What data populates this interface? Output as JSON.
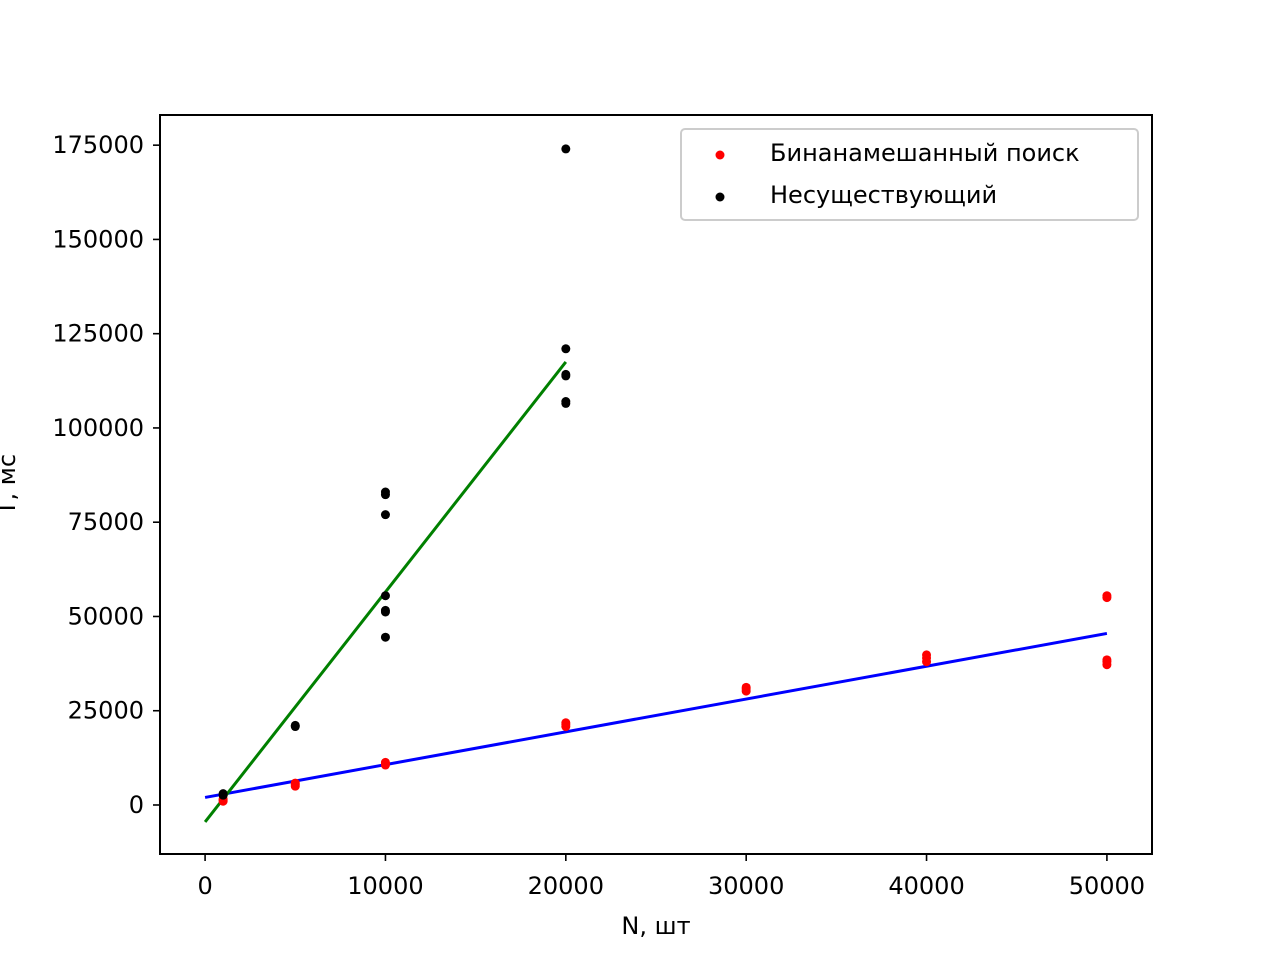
{
  "chart_data": {
    "type": "scatter",
    "title": "",
    "xlabel": "N, шт",
    "ylabel": "T, мс",
    "xlim": [
      -2500,
      52500
    ],
    "ylim": [
      -13000,
      183000
    ],
    "xticks": [
      0,
      10000,
      20000,
      30000,
      40000,
      50000
    ],
    "xtick_labels": [
      "0",
      "10000",
      "20000",
      "30000",
      "40000",
      "50000"
    ],
    "yticks": [
      0,
      25000,
      50000,
      75000,
      100000,
      125000,
      150000,
      175000
    ],
    "ytick_labels": [
      "0",
      "25000",
      "50000",
      "75000",
      "100000",
      "125000",
      "150000",
      "175000"
    ],
    "grid": false,
    "legend_position": "top-right",
    "series": [
      {
        "name": "Бинанамешанный поиск",
        "color": "#ff0000",
        "points": [
          [
            1000,
            1000
          ],
          [
            1000,
            1300
          ],
          [
            1000,
            1600
          ],
          [
            5000,
            5000
          ],
          [
            5000,
            5400
          ],
          [
            5000,
            5800
          ],
          [
            10000,
            10600
          ],
          [
            10000,
            11000
          ],
          [
            10000,
            11300
          ],
          [
            20000,
            20800
          ],
          [
            20000,
            21400
          ],
          [
            20000,
            21800
          ],
          [
            30000,
            30200
          ],
          [
            30000,
            30800
          ],
          [
            30000,
            31200
          ],
          [
            40000,
            38000
          ],
          [
            40000,
            39000
          ],
          [
            40000,
            39800
          ],
          [
            50000,
            37200
          ],
          [
            50000,
            38000
          ],
          [
            50000,
            38500
          ],
          [
            50000,
            55000
          ],
          [
            50000,
            55500
          ]
        ]
      },
      {
        "name": "Несуществующий",
        "color": "#000000",
        "points": [
          [
            1000,
            2600
          ],
          [
            1000,
            3000
          ],
          [
            5000,
            20800
          ],
          [
            5000,
            21100
          ],
          [
            10000,
            44500
          ],
          [
            10000,
            51200
          ],
          [
            10000,
            51600
          ],
          [
            10000,
            55500
          ],
          [
            10000,
            77000
          ],
          [
            10000,
            82300
          ],
          [
            10000,
            83000
          ],
          [
            20000,
            106500
          ],
          [
            20000,
            107000
          ],
          [
            20000,
            113800
          ],
          [
            20000,
            114200
          ],
          [
            20000,
            121000
          ],
          [
            20000,
            174000
          ]
        ]
      }
    ],
    "fit_lines": [
      {
        "color": "#0000ff",
        "x": [
          0,
          50000
        ],
        "y": [
          2000,
          45500
        ]
      },
      {
        "color": "#008000",
        "x": [
          0,
          20000
        ],
        "y": [
          -4500,
          117500
        ]
      }
    ]
  }
}
